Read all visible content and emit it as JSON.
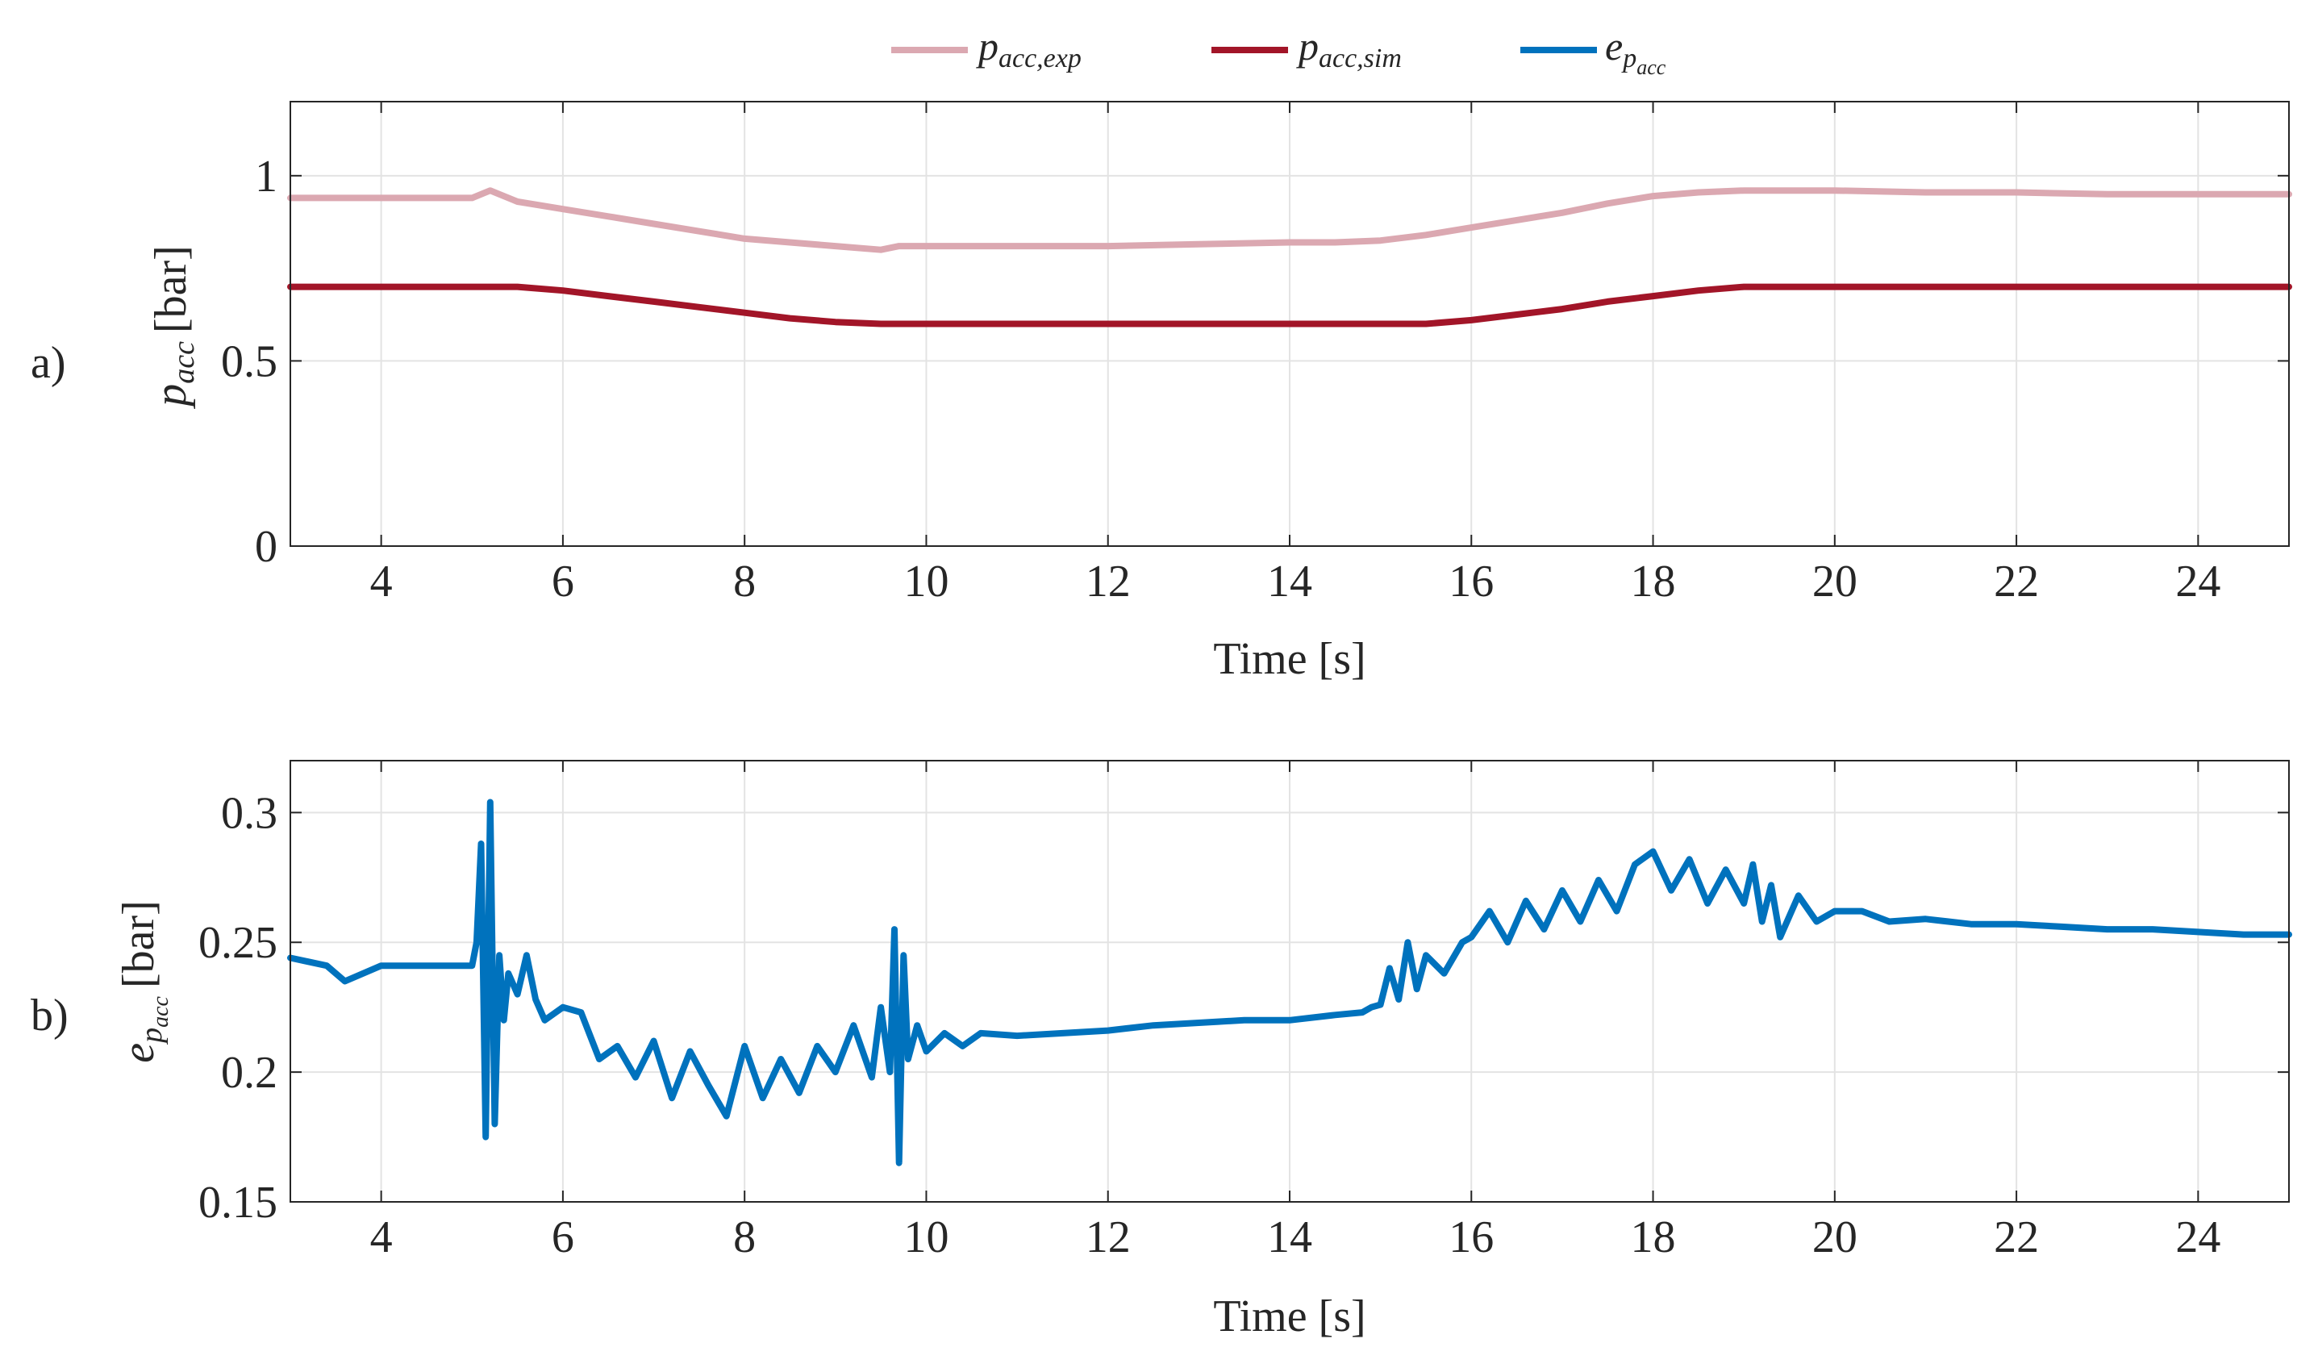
{
  "legend": {
    "entries": [
      {
        "base": "p",
        "sub": "acc,exp",
        "color": "#dba8b1"
      },
      {
        "base": "p",
        "sub": "acc,sim",
        "color": "#a21528"
      },
      {
        "base": "e",
        "sub": "p",
        "subsub": "acc",
        "color": "#0072bd"
      }
    ]
  },
  "chart_data": [
    {
      "type": "line",
      "panel_label": "a)",
      "xlabel": "Time [s]",
      "ylabel": {
        "base": "p",
        "sub": "acc",
        "unit": "[bar]"
      },
      "xlim": [
        3,
        25
      ],
      "ylim": [
        0,
        1.2
      ],
      "xticks": [
        4,
        6,
        8,
        10,
        12,
        14,
        16,
        18,
        20,
        22,
        24
      ],
      "xtick_labels": [
        "4",
        "6",
        "8",
        "10",
        "12",
        "14",
        "16",
        "18",
        "20",
        "22",
        "24"
      ],
      "yticks": [
        0,
        0.5,
        1
      ],
      "ytick_labels": [
        "0",
        "0.5",
        "1"
      ],
      "grid": true,
      "series": [
        {
          "name": "p_acc,exp",
          "color": "#dba8b1",
          "x": [
            3.0,
            4.0,
            5.0,
            5.1,
            5.2,
            5.3,
            5.5,
            6.0,
            6.5,
            7.0,
            7.5,
            8.0,
            8.5,
            9.0,
            9.5,
            9.7,
            10.0,
            10.5,
            11.0,
            12.0,
            13.0,
            14.0,
            14.5,
            15.0,
            15.5,
            16.0,
            16.5,
            17.0,
            17.5,
            18.0,
            18.5,
            19.0,
            19.5,
            20.0,
            21.0,
            22.0,
            23.0,
            24.0,
            25.0
          ],
          "y": [
            0.94,
            0.94,
            0.94,
            0.95,
            0.96,
            0.95,
            0.93,
            0.91,
            0.89,
            0.87,
            0.85,
            0.83,
            0.82,
            0.81,
            0.8,
            0.81,
            0.81,
            0.81,
            0.81,
            0.81,
            0.815,
            0.82,
            0.82,
            0.825,
            0.84,
            0.86,
            0.88,
            0.9,
            0.925,
            0.945,
            0.955,
            0.96,
            0.96,
            0.96,
            0.955,
            0.955,
            0.95,
            0.95,
            0.95
          ]
        },
        {
          "name": "p_acc,sim",
          "color": "#a21528",
          "x": [
            3.0,
            4.0,
            5.0,
            5.5,
            6.0,
            6.5,
            7.0,
            7.5,
            8.0,
            8.5,
            9.0,
            9.5,
            10.0,
            11.0,
            12.0,
            13.0,
            14.0,
            15.0,
            15.5,
            16.0,
            16.5,
            17.0,
            17.5,
            18.0,
            18.5,
            19.0,
            19.5,
            20.0,
            21.0,
            22.0,
            23.0,
            24.0,
            25.0
          ],
          "y": [
            0.7,
            0.7,
            0.7,
            0.7,
            0.69,
            0.675,
            0.66,
            0.645,
            0.63,
            0.615,
            0.605,
            0.6,
            0.6,
            0.6,
            0.6,
            0.6,
            0.6,
            0.6,
            0.6,
            0.61,
            0.625,
            0.64,
            0.66,
            0.675,
            0.69,
            0.7,
            0.7,
            0.7,
            0.7,
            0.7,
            0.7,
            0.7,
            0.7
          ]
        }
      ]
    },
    {
      "type": "line",
      "panel_label": "b)",
      "xlabel": "Time [s]",
      "ylabel": {
        "base": "e",
        "sub": "p",
        "subsub": "acc",
        "unit": "[bar]"
      },
      "xlim": [
        3,
        25
      ],
      "ylim": [
        0.15,
        0.32
      ],
      "xticks": [
        4,
        6,
        8,
        10,
        12,
        14,
        16,
        18,
        20,
        22,
        24
      ],
      "xtick_labels": [
        "4",
        "6",
        "8",
        "10",
        "12",
        "14",
        "16",
        "18",
        "20",
        "22",
        "24"
      ],
      "yticks": [
        0.15,
        0.2,
        0.25,
        0.3
      ],
      "ytick_labels": [
        "0.15",
        "0.2",
        "0.25",
        "0.3"
      ],
      "grid": true,
      "series": [
        {
          "name": "e_p_acc",
          "color": "#0072bd",
          "x": [
            3.0,
            3.4,
            3.6,
            4.0,
            4.5,
            5.0,
            5.05,
            5.1,
            5.15,
            5.2,
            5.25,
            5.3,
            5.35,
            5.4,
            5.5,
            5.6,
            5.7,
            5.8,
            6.0,
            6.2,
            6.4,
            6.6,
            6.8,
            7.0,
            7.2,
            7.4,
            7.6,
            7.8,
            8.0,
            8.2,
            8.4,
            8.6,
            8.8,
            9.0,
            9.2,
            9.4,
            9.5,
            9.6,
            9.65,
            9.7,
            9.75,
            9.8,
            9.9,
            10.0,
            10.2,
            10.4,
            10.6,
            11.0,
            11.5,
            12.0,
            12.5,
            13.0,
            13.5,
            14.0,
            14.5,
            14.8,
            14.9,
            15.0,
            15.1,
            15.2,
            15.3,
            15.4,
            15.5,
            15.7,
            15.9,
            16.0,
            16.2,
            16.4,
            16.6,
            16.8,
            17.0,
            17.2,
            17.4,
            17.6,
            17.8,
            18.0,
            18.2,
            18.4,
            18.6,
            18.8,
            19.0,
            19.1,
            19.2,
            19.3,
            19.4,
            19.6,
            19.8,
            20.0,
            20.3,
            20.6,
            21.0,
            21.5,
            22.0,
            22.5,
            23.0,
            23.5,
            24.0,
            24.5,
            25.0
          ],
          "y": [
            0.244,
            0.241,
            0.235,
            0.241,
            0.241,
            0.241,
            0.25,
            0.288,
            0.175,
            0.304,
            0.18,
            0.245,
            0.22,
            0.238,
            0.23,
            0.245,
            0.228,
            0.22,
            0.225,
            0.223,
            0.205,
            0.21,
            0.198,
            0.212,
            0.19,
            0.208,
            0.195,
            0.183,
            0.21,
            0.19,
            0.205,
            0.192,
            0.21,
            0.2,
            0.218,
            0.198,
            0.225,
            0.2,
            0.255,
            0.165,
            0.245,
            0.205,
            0.218,
            0.208,
            0.215,
            0.21,
            0.215,
            0.214,
            0.215,
            0.216,
            0.218,
            0.219,
            0.22,
            0.22,
            0.222,
            0.223,
            0.225,
            0.226,
            0.24,
            0.228,
            0.25,
            0.232,
            0.245,
            0.238,
            0.25,
            0.252,
            0.262,
            0.25,
            0.266,
            0.255,
            0.27,
            0.258,
            0.274,
            0.262,
            0.28,
            0.285,
            0.27,
            0.282,
            0.265,
            0.278,
            0.265,
            0.28,
            0.258,
            0.272,
            0.252,
            0.268,
            0.258,
            0.262,
            0.262,
            0.258,
            0.259,
            0.257,
            0.257,
            0.256,
            0.255,
            0.255,
            0.254,
            0.253,
            0.253
          ]
        }
      ]
    }
  ]
}
